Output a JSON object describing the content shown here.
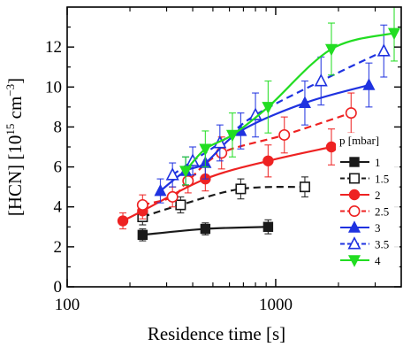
{
  "chart_data": {
    "type": "scatter",
    "xlabel": "Residence time [s]",
    "ylabel_parts": {
      "main": "[HCN] [10",
      "exp1": "15",
      "mid": " cm",
      "exp2": "−3",
      "end": "]"
    },
    "x_scale": "log",
    "xlim": [
      100,
      4000
    ],
    "ylim": [
      0,
      14
    ],
    "x_ticks": [
      100,
      1000
    ],
    "x_tick_labels": [
      "100",
      "1000"
    ],
    "y_ticks": [
      0,
      2,
      4,
      6,
      8,
      10,
      12
    ],
    "y_tick_labels": [
      "0",
      "2",
      "4",
      "6",
      "8",
      "10",
      "12"
    ],
    "grid": false,
    "legend_title": "p [mbar]",
    "legend_position": "bottom-right",
    "series": [
      {
        "name": "1",
        "color": "#1a1a1a",
        "marker": "square",
        "filled": true,
        "dashed": false,
        "x": [
          230,
          460,
          920
        ],
        "y": [
          2.6,
          2.9,
          3.0
        ],
        "err": [
          0.3,
          0.3,
          0.35
        ]
      },
      {
        "name": "1.5",
        "color": "#1a1a1a",
        "marker": "square",
        "filled": false,
        "dashed": true,
        "x": [
          230,
          350,
          680,
          1380
        ],
        "y": [
          3.5,
          4.1,
          4.9,
          5.0
        ],
        "err": [
          0.4,
          0.4,
          0.5,
          0.5
        ]
      },
      {
        "name": "2",
        "color": "#ee2222",
        "marker": "circle",
        "filled": true,
        "dashed": false,
        "x": [
          185,
          230,
          460,
          920,
          1850
        ],
        "y": [
          3.3,
          3.8,
          5.4,
          6.3,
          7.0
        ],
        "err": [
          0.4,
          0.4,
          0.6,
          0.8,
          0.9
        ]
      },
      {
        "name": "2.5",
        "color": "#ee2222",
        "marker": "circle",
        "filled": false,
        "dashed": true,
        "x": [
          230,
          320,
          380,
          550,
          1100,
          2300
        ],
        "y": [
          4.1,
          4.5,
          5.3,
          6.7,
          7.6,
          8.7
        ],
        "err": [
          0.5,
          0.5,
          0.6,
          0.8,
          0.9,
          1.0
        ]
      },
      {
        "name": "3",
        "color": "#1f32e0",
        "marker": "triangle",
        "filled": true,
        "dashed": false,
        "x": [
          280,
          370,
          460,
          680,
          1380,
          2800
        ],
        "y": [
          4.8,
          5.8,
          6.2,
          7.8,
          9.2,
          10.1
        ],
        "err": [
          0.6,
          0.7,
          0.8,
          0.9,
          1.1,
          1.1
        ]
      },
      {
        "name": "3.5",
        "color": "#1f32e0",
        "marker": "triangle",
        "filled": false,
        "dashed": true,
        "x": [
          320,
          400,
          540,
          800,
          1650,
          3300
        ],
        "y": [
          5.6,
          6.3,
          7.2,
          8.6,
          10.3,
          11.8
        ],
        "err": [
          0.6,
          0.7,
          0.9,
          1.1,
          1.2,
          1.3
        ]
      },
      {
        "name": "4",
        "color": "#22dd22",
        "marker": "triangle-down",
        "filled": true,
        "dashed": false,
        "x": [
          370,
          460,
          620,
          920,
          1850,
          3700
        ],
        "y": [
          5.8,
          6.9,
          7.6,
          9.0,
          11.9,
          12.7
        ],
        "err": [
          0.7,
          0.9,
          1.1,
          1.3,
          1.3,
          1.4
        ]
      }
    ]
  }
}
